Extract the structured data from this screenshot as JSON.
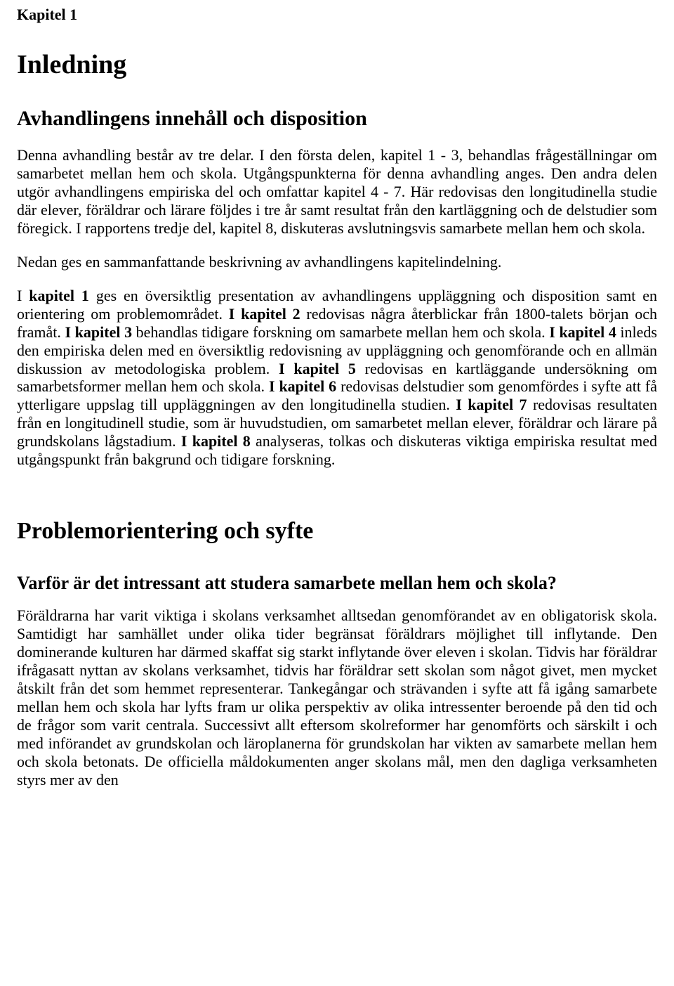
{
  "chapter_label": "Kapitel 1",
  "heading_inledning": "Inledning",
  "heading_avhandlingens": "Avhandlingens innehåll och disposition",
  "para1": "Denna avhandling består av tre delar. I den första  delen, kapitel 1 - 3, behandlas fråge­ställningar om samarbetet mellan hem och skola. Utgångspunkterna för denna avhandling anges. Den andra delen utgör avhandlingens empiriska del och omfattar kapitel 4 - 7. Här redovisas den longitudinella studie där  elever, föräldrar och lärare följdes i tre år samt resultat från den kartläggning och de delstudier som föregick. I rapportens tredje  del, kapitel 8, diskuteras avslutningsvis samarbete mellan hem och skola.",
  "para2": "Nedan ges en sammanfattande beskrivning av avhandlingens kapitelindelning.",
  "para3_parts": {
    "a": "I ",
    "b": "kapitel 1",
    "c": " ges en översiktlig presentation av avhandlingens uppläggning och disposition samt en orientering om problemområdet. ",
    "d": "I kapitel 2",
    "e": " redovisas några återblickar från 1800-talets början och framåt. ",
    "f": "I kapitel 3",
    "g": " behandlas tidigare forskning om samarbete mellan hem och skola. ",
    "h": "I kapitel 4",
    "i": " inleds den empiriska delen med en översiktlig redovisning av uppläggning och genomförande och en allmän diskussion av metodologiska problem. ",
    "j": "I kapitel 5",
    "k": " redovisas en kartläggande undersökning om samarbetsformer mellan hem och skola. ",
    "l": "I kapitel 6",
    "m": " redovisas delstudier som genomfördes i syfte att få ytterligare uppslag till uppläggningen av den longitudinella studien. ",
    "n": "I kapitel 7",
    "o": " redovisas resultaten från en longitudinell studie, som är huvudstudien, om samarbetet mellan elever, föräldrar och lärare på grundskolans lågstadium. ",
    "p": "I kapitel 8",
    "q": " analyseras, tolkas och diskuteras  viktiga empiriska resultat med utgångspunkt från bakgrund och tidigare forskning."
  },
  "heading_problemorientering": "Problemorientering och syfte",
  "heading_varfor": "Varför är det intressant att studera samarbete mellan hem och skola?",
  "para4": "Föräldrarna har varit viktiga i skolans verksamhet alltsedan genomförandet av en obligatorisk skola. Samtidigt har samhället under olika tider begränsat föräldrars möjlighet till inflytande. Den dominerande kulturen har därmed skaffat sig starkt inflytande över eleven i skolan. Tidvis har föräldrar ifrågasatt nyttan av skolans verksamhet, tidvis har föräldrar sett skolan som något givet, men mycket åtskilt från det som hemmet representerar. Tankegångar och strävanden i syfte att få igång samarbete mellan hem och skola har lyfts fram ur olika perspektiv av olika intressenter beroende på den tid och de frågor som varit centrala. Successivt allt eftersom skolreformer har genomförts och särskilt i och med införandet av grundskolan och läroplanerna för grundskolan har vikten av samarbete mellan hem och skola betonats. De officiella måldokumenten anger skolans mål, men den dagliga verksamheten styrs mer av den"
}
